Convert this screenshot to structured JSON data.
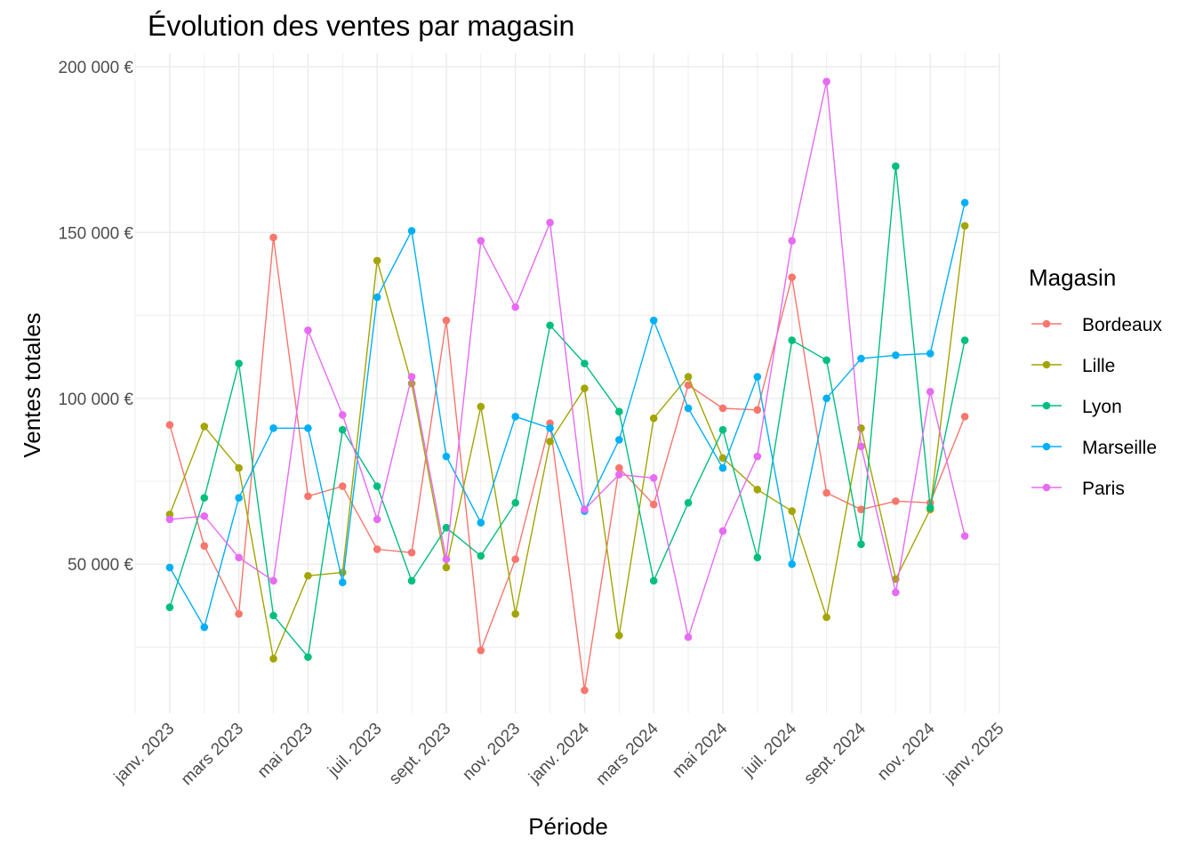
{
  "chart_data": {
    "type": "line",
    "title": "Évolution des ventes par magasin",
    "xlabel": "Période",
    "ylabel": "Ventes totales",
    "legend_title": "Magasin",
    "legend_position": "right",
    "grid": true,
    "x": [
      "2023-01",
      "2023-02",
      "2023-03",
      "2023-04",
      "2023-05",
      "2023-06",
      "2023-07",
      "2023-08",
      "2023-09",
      "2023-10",
      "2023-11",
      "2023-12",
      "2024-01",
      "2024-02",
      "2024-03",
      "2024-04",
      "2024-05",
      "2024-06",
      "2024-07",
      "2024-08",
      "2024-09",
      "2024-10",
      "2024-11",
      "2024-12"
    ],
    "x_ticks": [
      {
        "date": "2023-01",
        "label": "janv. 2023"
      },
      {
        "date": "2023-03",
        "label": "mars 2023"
      },
      {
        "date": "2023-05",
        "label": "mai 2023"
      },
      {
        "date": "2023-07",
        "label": "juil. 2023"
      },
      {
        "date": "2023-09",
        "label": "sept. 2023"
      },
      {
        "date": "2023-11",
        "label": "nov. 2023"
      },
      {
        "date": "2024-01",
        "label": "janv. 2024"
      },
      {
        "date": "2024-03",
        "label": "mars 2024"
      },
      {
        "date": "2024-05",
        "label": "mai 2024"
      },
      {
        "date": "2024-07",
        "label": "juil. 2024"
      },
      {
        "date": "2024-09",
        "label": "sept. 2024"
      },
      {
        "date": "2024-11",
        "label": "nov. 2024"
      },
      {
        "date": "2025-01",
        "label": "janv. 2025"
      }
    ],
    "xlim": [
      "2022-12",
      "2025-01"
    ],
    "y_ticks": [
      {
        "value": 50000,
        "label": "50 000 €"
      },
      {
        "value": 100000,
        "label": "100 000 €"
      },
      {
        "value": 150000,
        "label": "150 000 €"
      },
      {
        "value": 200000,
        "label": "200 000 €"
      }
    ],
    "ylim": [
      5000,
      204000
    ],
    "series": [
      {
        "name": "Bordeaux",
        "color": "#F8766D",
        "values": [
          92000,
          55500,
          35000,
          148500,
          70500,
          73500,
          54500,
          53500,
          123500,
          24000,
          51500,
          92500,
          12000,
          79000,
          68000,
          104000,
          97000,
          96500,
          136500,
          71500,
          66500,
          69000,
          68500,
          94500
        ]
      },
      {
        "name": "Lille",
        "color": "#A3A500",
        "values": [
          65000,
          91500,
          79000,
          21500,
          46500,
          47500,
          141500,
          104500,
          49000,
          97500,
          35000,
          87000,
          103000,
          28500,
          94000,
          106500,
          82000,
          72500,
          66000,
          34000,
          91000,
          45500,
          66500,
          152000
        ]
      },
      {
        "name": "Lyon",
        "color": "#00BF7D",
        "values": [
          37000,
          70000,
          110500,
          34500,
          22000,
          90500,
          73500,
          45000,
          61000,
          52500,
          68500,
          122000,
          110500,
          96000,
          45000,
          68500,
          90500,
          52000,
          117500,
          111500,
          56000,
          170000,
          67000,
          117500
        ]
      },
      {
        "name": "Marseille",
        "color": "#00B0F6",
        "values": [
          49000,
          31000,
          70000,
          91000,
          91000,
          44500,
          130500,
          150500,
          82500,
          62500,
          94500,
          91000,
          66000,
          87500,
          123500,
          97000,
          79000,
          106500,
          50000,
          100000,
          112000,
          113000,
          113500,
          159000
        ]
      },
      {
        "name": "Paris",
        "color": "#E76BF3",
        "values": [
          63500,
          64500,
          52000,
          45000,
          120500,
          95000,
          63500,
          106500,
          51500,
          147500,
          127500,
          153000,
          66500,
          77000,
          76000,
          28000,
          60000,
          82500,
          147500,
          195500,
          85500,
          41500,
          102000,
          58500
        ]
      }
    ]
  }
}
